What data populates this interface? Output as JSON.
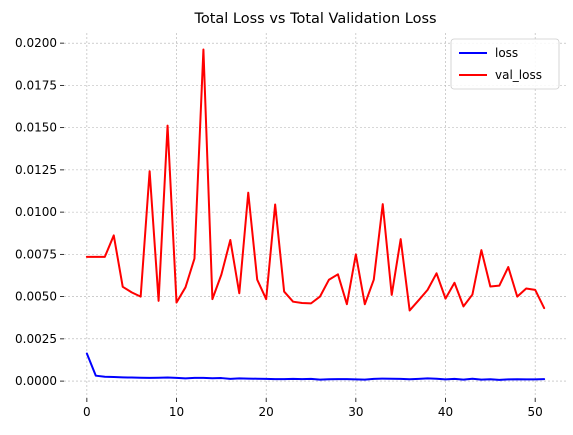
{
  "chart_data": {
    "type": "line",
    "title": "Total Loss vs Total Validation Loss",
    "xlabel": "",
    "ylabel": "",
    "xlim": [
      -2.55,
      53.55
    ],
    "ylim": [
      -0.001,
      0.0206
    ],
    "x_ticks": [
      0,
      10,
      20,
      30,
      40,
      50
    ],
    "x_tick_labels": [
      "0",
      "10",
      "20",
      "30",
      "40",
      "50"
    ],
    "y_ticks": [
      0.0,
      0.0025,
      0.005,
      0.0075,
      0.01,
      0.0125,
      0.015,
      0.0175,
      0.02
    ],
    "y_tick_labels": [
      "0.0000",
      "0.0025",
      "0.0050",
      "0.0075",
      "0.0100",
      "0.0125",
      "0.0150",
      "0.0175",
      "0.0200"
    ],
    "grid": true,
    "legend_position": "upper-right",
    "x": [
      0,
      1,
      2,
      3,
      4,
      5,
      6,
      7,
      8,
      9,
      10,
      11,
      12,
      13,
      14,
      15,
      16,
      17,
      18,
      19,
      20,
      21,
      22,
      23,
      24,
      25,
      26,
      27,
      28,
      29,
      30,
      31,
      32,
      33,
      34,
      35,
      36,
      37,
      38,
      39,
      40,
      41,
      42,
      43,
      44,
      45,
      46,
      47,
      48,
      49,
      50,
      51
    ],
    "series": [
      {
        "name": "loss",
        "color": "#0000ff",
        "values": [
          0.00163,
          0.00032,
          0.00026,
          0.00024,
          0.00022,
          0.00021,
          0.0002,
          0.00019,
          0.0002,
          0.00021,
          0.00019,
          0.00016,
          0.00019,
          0.00019,
          0.00017,
          0.00018,
          0.00013,
          0.00016,
          0.00015,
          0.00014,
          0.00013,
          0.00012,
          0.00012,
          0.00013,
          0.00012,
          0.00013,
          9e-05,
          0.00011,
          0.00012,
          0.00012,
          0.0001,
          9e-05,
          0.00013,
          0.00015,
          0.00014,
          0.00013,
          0.00011,
          0.00013,
          0.00016,
          0.00014,
          0.0001,
          0.00013,
          9e-05,
          0.00014,
          9e-05,
          0.00011,
          7e-05,
          0.0001,
          0.00011,
          0.0001,
          0.0001,
          0.00012
        ]
      },
      {
        "name": "val_loss",
        "color": "#ff0000",
        "values": [
          0.00735,
          0.00735,
          0.00735,
          0.00862,
          0.00558,
          0.00525,
          0.005,
          0.01242,
          0.00475,
          0.01512,
          0.00465,
          0.00555,
          0.00725,
          0.01962,
          0.00485,
          0.0063,
          0.00835,
          0.0052,
          0.01115,
          0.006,
          0.00485,
          0.01045,
          0.0053,
          0.0047,
          0.00462,
          0.0046,
          0.005,
          0.006,
          0.00632,
          0.00455,
          0.0075,
          0.00455,
          0.006,
          0.01047,
          0.0051,
          0.0084,
          0.00418,
          0.00478,
          0.0054,
          0.00638,
          0.00488,
          0.00582,
          0.00442,
          0.00512,
          0.00775,
          0.0056,
          0.00565,
          0.00675,
          0.005,
          0.00548,
          0.0054,
          0.00432
        ]
      }
    ]
  }
}
